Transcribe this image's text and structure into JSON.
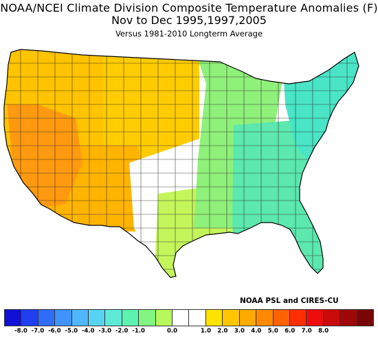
{
  "header": {
    "title": "NOAA/NCEI Climate Division Composite Temperature Anomalies (F)",
    "period": "Nov to Dec  1995,1997,2005",
    "baseline": "Versus 1981-2010 Longterm Average"
  },
  "credit": "NOAA PSL and CIRES-CU",
  "legend": {
    "colors": [
      "#1010d8",
      "#1f3ff0",
      "#2f6cf7",
      "#3f93fb",
      "#4fb6ff",
      "#59d3f3",
      "#5fead8",
      "#5cf2b0",
      "#82f582",
      "#b6f75c",
      "#ffffff",
      "#ffffff",
      "#ffe300",
      "#ffc600",
      "#ffaa00",
      "#ff8a00",
      "#ff6200",
      "#ff2e00",
      "#ee0c0c",
      "#c90b0b",
      "#a00808",
      "#780606"
    ],
    "ticks": [
      "-8.0",
      "-7.0",
      "-6.0",
      "-5.0",
      "-4.0",
      "-3.0",
      "-2.0",
      "-1.0",
      "0.0",
      "1.0",
      "2.0",
      "3.0",
      "4.0",
      "5.0",
      "6.0",
      "7.0",
      "8.0"
    ]
  },
  "map": {
    "regions": [
      {
        "name": "pacific-northwest",
        "value": 1.6,
        "color": "#ffc300"
      },
      {
        "name": "california-nevada",
        "value": 3.6,
        "color": "#ff9a10"
      },
      {
        "name": "desert-southwest",
        "value": 2.2,
        "color": "#ffb400"
      },
      {
        "name": "northern-rockies-plains",
        "value": 1.5,
        "color": "#ffcc00"
      },
      {
        "name": "southern-plains",
        "value": 0.0,
        "color": "#ffffff"
      },
      {
        "name": "texas-gulf-coast",
        "value": -0.6,
        "color": "#c4f55a"
      },
      {
        "name": "midwest",
        "value": -1.1,
        "color": "#8ff07a"
      },
      {
        "name": "southeast",
        "value": -2.1,
        "color": "#5ce8ae"
      },
      {
        "name": "northeast",
        "value": -2.4,
        "color": "#4ae4c6"
      }
    ]
  }
}
